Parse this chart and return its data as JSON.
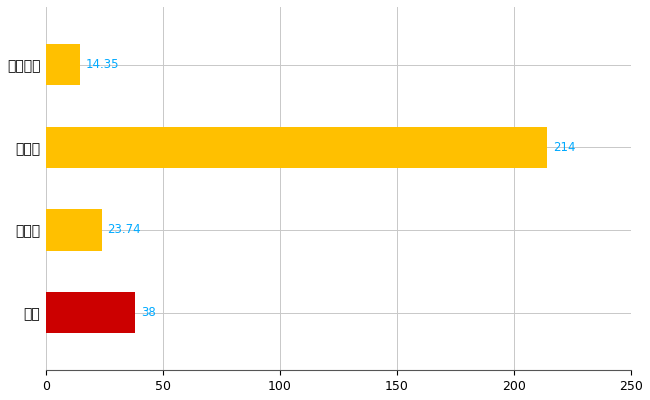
{
  "categories": [
    "西区",
    "県平均",
    "県最大",
    "全国平均"
  ],
  "values": [
    38,
    23.74,
    214,
    14.35
  ],
  "bar_colors": [
    "#CC0000",
    "#FFC000",
    "#FFC000",
    "#FFC000"
  ],
  "value_labels": [
    "38",
    "23.74",
    "214",
    "14.35"
  ],
  "xlim": [
    0,
    250
  ],
  "xticks": [
    0,
    50,
    100,
    150,
    200,
    250
  ],
  "background_color": "#FFFFFF",
  "grid_color": "#C8C8C8",
  "label_color": "#00AAFF",
  "bar_height": 0.5,
  "figsize": [
    6.5,
    4.0
  ],
  "dpi": 100
}
